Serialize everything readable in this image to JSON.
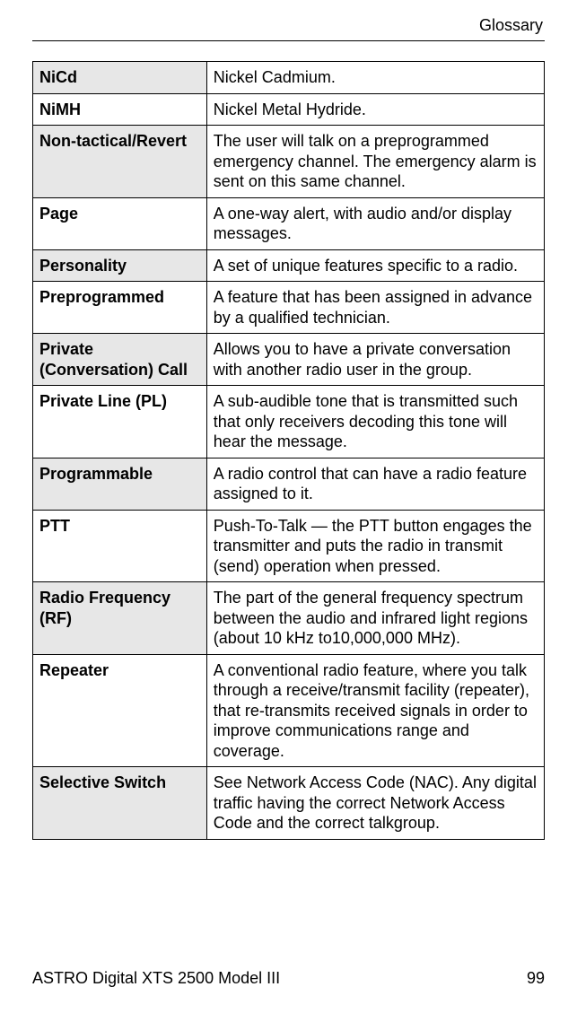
{
  "header": {
    "section": "Glossary"
  },
  "table": {
    "columns": {
      "term_width_pct": 34,
      "def_width_pct": 66
    },
    "border_color": "#000000",
    "shade_color": "#e7e7e7",
    "font_size_pt": 18,
    "rows": [
      {
        "term": "NiCd",
        "definition": "Nickel Cadmium.",
        "shaded": true
      },
      {
        "term": "NiMH",
        "definition": "Nickel Metal Hydride.",
        "shaded": false
      },
      {
        "term": "Non-tactical/Revert",
        "definition": "The user will talk on a preprogrammed emergency channel. The emergency alarm is sent on this same channel.",
        "shaded": true
      },
      {
        "term": "Page",
        "definition": "A one-way alert, with audio and/or display messages.",
        "shaded": false
      },
      {
        "term": "Personality",
        "definition": "A set of unique features specific to a radio.",
        "shaded": true
      },
      {
        "term": "Preprogrammed",
        "definition": "A feature that has been assigned in advance by a qualified technician.",
        "shaded": false
      },
      {
        "term": "Private (Conversation) Call",
        "definition": "Allows you to have a private conversation with another radio user in the group.",
        "shaded": true
      },
      {
        "term": "Private Line (PL)",
        "definition": "A sub-audible tone that is transmitted such that only receivers decoding this tone will hear the message.",
        "shaded": false
      },
      {
        "term": "Programmable",
        "definition": "A radio control that can have a radio feature assigned to it.",
        "shaded": true
      },
      {
        "term": "PTT",
        "definition": "Push-To-Talk — the PTT button engages the transmitter and puts the radio in transmit (send) operation when pressed.",
        "shaded": false
      },
      {
        "term": "Radio Frequency (RF)",
        "definition": "The part of the general frequency spectrum between the audio and infrared light regions (about 10 kHz to10,000,000 MHz).",
        "shaded": true
      },
      {
        "term": "Repeater",
        "definition": "A conventional radio feature, where you talk through a receive/transmit facility (repeater), that re-transmits received signals in order to improve communications range and coverage.",
        "shaded": false
      },
      {
        "term": "Selective Switch",
        "definition": "See Network Access Code (NAC). Any digital traffic having the correct Network Access Code and the correct talkgroup.",
        "shaded": true
      }
    ]
  },
  "footer": {
    "doc_title": "ASTRO Digital XTS 2500 Model III",
    "page_number": "99"
  }
}
